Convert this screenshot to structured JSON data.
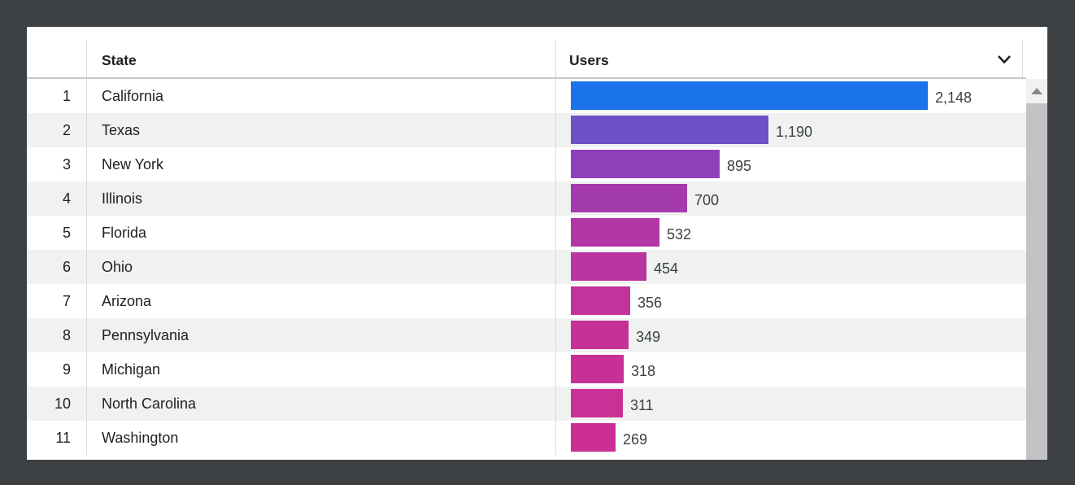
{
  "chart_data": {
    "type": "bar",
    "orientation": "horizontal",
    "dimension": "State",
    "metric": "Users",
    "row_indices": [
      "1",
      "2",
      "3",
      "4",
      "5",
      "6",
      "7",
      "8",
      "9",
      "10",
      "11"
    ],
    "categories": [
      "California",
      "Texas",
      "New York",
      "Illinois",
      "Florida",
      "Ohio",
      "Arizona",
      "Pennsylvania",
      "Michigan",
      "North Carolina",
      "Washington"
    ],
    "values": [
      2148,
      1190,
      895,
      700,
      532,
      454,
      356,
      349,
      318,
      311,
      269
    ],
    "value_labels": [
      "2,148",
      "1,190",
      "895",
      "700",
      "532",
      "454",
      "356",
      "349",
      "318",
      "311",
      "269"
    ],
    "bar_colors": [
      "#1a73e8",
      "#6e51c6",
      "#8d42bc",
      "#a33bae",
      "#b236a5",
      "#bc34a0",
      "#c2339b",
      "#c53198",
      "#c83096",
      "#ca3095",
      "#cb2f94"
    ],
    "xlim": [
      0,
      2148
    ],
    "grid": false,
    "legend": false,
    "title": ""
  },
  "icons": {
    "sort_chevron": "chevron-down",
    "scroll_up": "triangle-up"
  },
  "colors": {
    "page_bg": "#3c4043",
    "card_bg": "#ffffff",
    "row_alt_bg": "#f0f2f1",
    "divider": "#d9dbde",
    "header_border": "#c6c9cc",
    "text_primary": "#202124",
    "text_value": "#3c4043",
    "scroll_track": "#f1f1f1",
    "scroll_thumb": "#c2c2c4",
    "scroll_arrow": "#84878b",
    "bar_max": "#1a73e8",
    "bar_min": "#cb2f94"
  }
}
